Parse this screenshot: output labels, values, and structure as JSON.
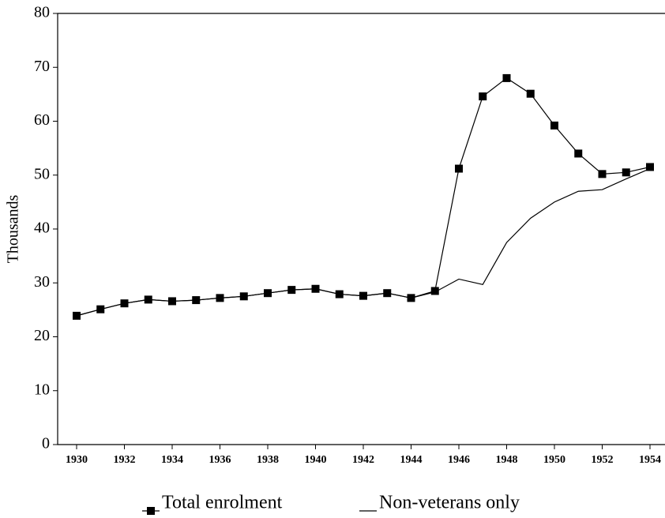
{
  "chart_data": {
    "type": "line",
    "y_label": "Thousands",
    "x": [
      1930,
      1931,
      1932,
      1933,
      1934,
      1935,
      1936,
      1937,
      1938,
      1939,
      1940,
      1941,
      1942,
      1943,
      1944,
      1945,
      1946,
      1947,
      1948,
      1949,
      1950,
      1951,
      1952,
      1953,
      1954
    ],
    "series": [
      {
        "name": "Total enrolment",
        "color": "#000000",
        "marker": "square",
        "values": [
          23.9,
          25.1,
          26.2,
          26.9,
          26.6,
          26.8,
          27.2,
          27.5,
          28.1,
          28.7,
          28.9,
          27.9,
          27.6,
          28.1,
          27.2,
          28.5,
          51.2,
          64.6,
          68.0,
          65.1,
          59.2,
          54.0,
          50.2,
          50.5,
          51.5
        ]
      },
      {
        "name": "Non-veterans only",
        "color": "#000000",
        "values": [
          23.9,
          25.1,
          26.2,
          26.9,
          26.6,
          26.8,
          27.2,
          27.5,
          28.1,
          28.7,
          28.9,
          27.9,
          27.6,
          28.1,
          27.2,
          28.3,
          30.7,
          29.7,
          37.5,
          42.0,
          45.0,
          47.0,
          47.3,
          49.3,
          51.2
        ]
      }
    ],
    "xlim": [
      1930,
      1954
    ],
    "xticks": [
      1930,
      1932,
      1934,
      1936,
      1938,
      1940,
      1942,
      1944,
      1946,
      1948,
      1950,
      1952,
      1954
    ],
    "ylim": [
      0,
      80
    ],
    "yticks": [
      0,
      10,
      20,
      30,
      40,
      50,
      60,
      70,
      80
    ]
  }
}
